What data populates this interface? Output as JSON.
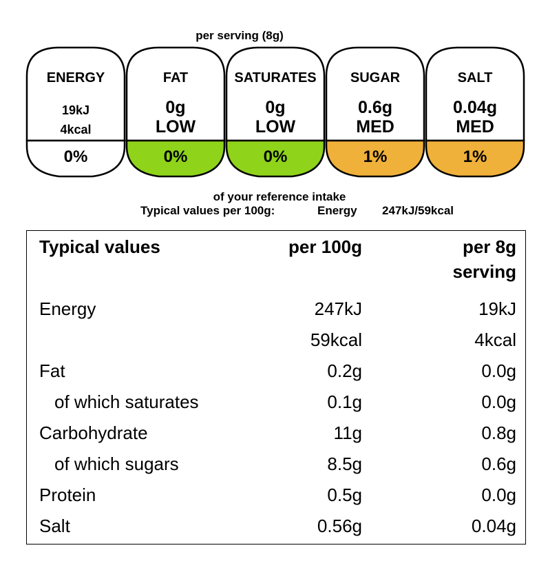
{
  "label": {
    "per_serving": "per serving  (8g)",
    "badges": [
      {
        "name": "ENERGY",
        "value1": "19kJ",
        "value2": "4kcal",
        "percent": "0%",
        "color": "#ffffff"
      },
      {
        "name": "FAT",
        "value1": "0g",
        "value2": "LOW",
        "percent": "0%",
        "color": "#8fd31b"
      },
      {
        "name": "SATURATES",
        "value1": "0g",
        "value2": "LOW",
        "percent": "0%",
        "color": "#8fd31b"
      },
      {
        "name": "SUGAR",
        "value1": "0.6g",
        "value2": "MED",
        "percent": "1%",
        "color": "#f0b13a"
      },
      {
        "name": "SALT",
        "value1": "0.04g",
        "value2": "MED",
        "percent": "1%",
        "color": "#f0b13a"
      }
    ],
    "reference_intake": "of your reference intake",
    "typical_line": {
      "prefix": "Typical values per 100g:",
      "nutrient": "Energy",
      "value": "247kJ/59kcal"
    }
  },
  "table": {
    "headers": {
      "col1": "Typical values",
      "col2": "per 100g",
      "col3_line1": "per 8g",
      "col3_line2": "serving"
    },
    "rows": [
      {
        "name": "Energy",
        "per100": "247kJ",
        "perServing": "19kJ",
        "indent": false
      },
      {
        "name": "",
        "per100": "59kcal",
        "perServing": "4kcal",
        "indent": false
      },
      {
        "name": "Fat",
        "per100": "0.2g",
        "perServing": "0.0g",
        "indent": false
      },
      {
        "name": "of which saturates",
        "per100": "0.1g",
        "perServing": "0.0g",
        "indent": true
      },
      {
        "name": "Carbohydrate",
        "per100": "11g",
        "perServing": "0.8g",
        "indent": false
      },
      {
        "name": "of which sugars",
        "per100": "8.5g",
        "perServing": "0.6g",
        "indent": true
      },
      {
        "name": "Protein",
        "per100": "0.5g",
        "perServing": "0.0g",
        "indent": false
      },
      {
        "name": "Salt",
        "per100": "0.56g",
        "perServing": "0.04g",
        "indent": false
      }
    ]
  }
}
